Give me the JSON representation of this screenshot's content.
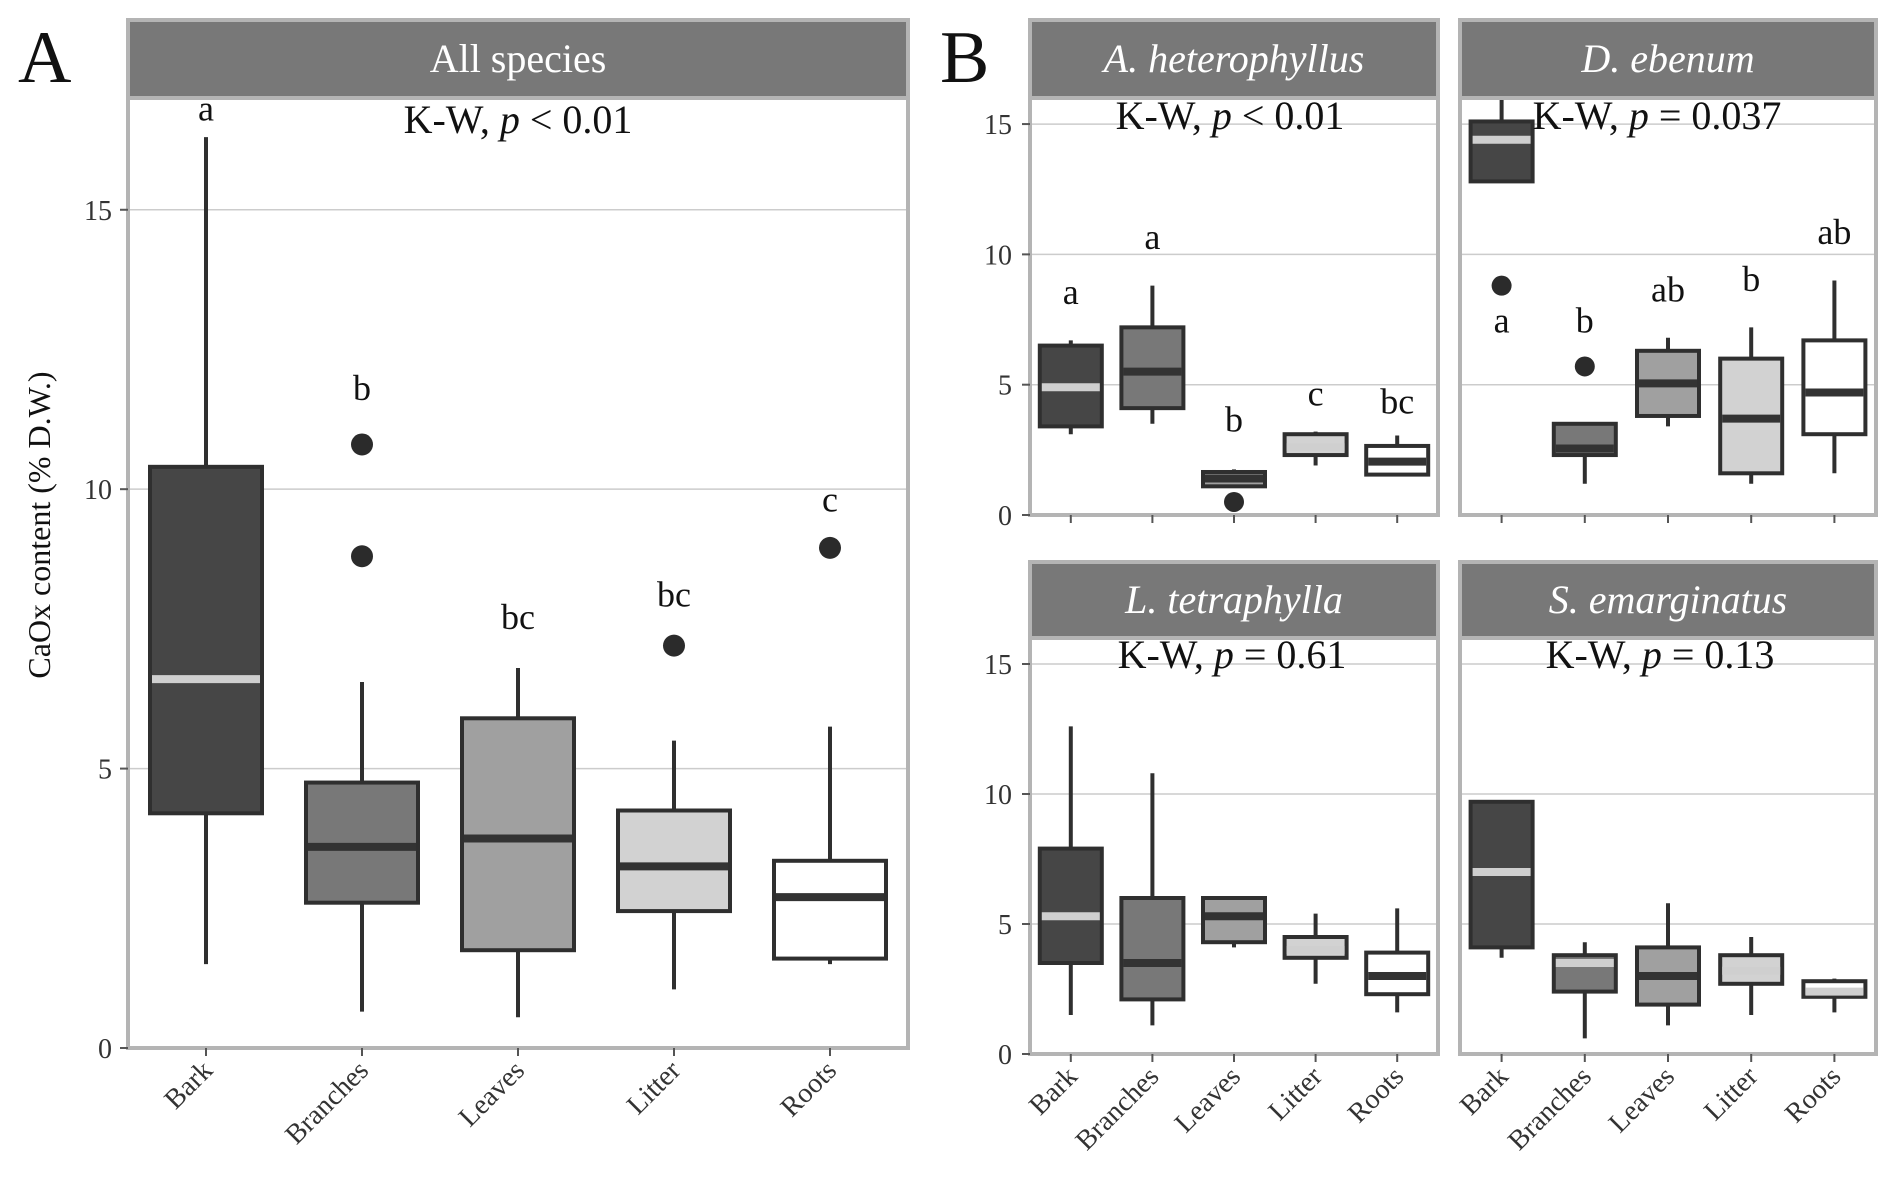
{
  "figure": {
    "y_axis_label": "CaOx content (% D.W.)",
    "panel_letters": [
      "A",
      "B"
    ],
    "colors": {
      "Bark": "#464646",
      "Branches": "#787878",
      "Leaves": "#a0a0a0",
      "Litter": "#d2d2d2",
      "Roots": "#ffffff",
      "strip": "#787878",
      "frame": "#b4b4b4",
      "outline": "#2f2f2f",
      "grid": "#cccccc"
    }
  },
  "chart_data": [
    {
      "type": "box",
      "panel_label": "A",
      "title": "All species",
      "test_prefix": "K-W, ",
      "test_p": "p",
      "test_value": " < 0.01",
      "xlabel": "",
      "ylabel": "CaOx content (% D.W.)",
      "ylim": [
        0,
        17
      ],
      "yticks": [
        0,
        5,
        10,
        15
      ],
      "categories": [
        "Bark",
        "Branches",
        "Leaves",
        "Litter",
        "Roots"
      ],
      "boxes": [
        {
          "category": "Bark",
          "q1": 4.2,
          "median": 6.6,
          "q3": 10.4,
          "whisker_low": 1.5,
          "whisker_high": 16.3,
          "outliers": [],
          "letter": "a",
          "letter_y": 16.6,
          "median_color": "light"
        },
        {
          "category": "Branches",
          "q1": 2.6,
          "median": 3.6,
          "q3": 4.75,
          "whisker_low": 0.65,
          "whisker_high": 6.55,
          "outliers": [
            10.8,
            8.8
          ],
          "letter": "b",
          "letter_y": 11.6,
          "median_color": "dark"
        },
        {
          "category": "Leaves",
          "q1": 1.75,
          "median": 3.75,
          "q3": 5.9,
          "whisker_low": 0.55,
          "whisker_high": 6.8,
          "outliers": [],
          "letter": "bc",
          "letter_y": 7.5,
          "median_color": "dark"
        },
        {
          "category": "Litter",
          "q1": 2.45,
          "median": 3.25,
          "q3": 4.25,
          "whisker_low": 1.05,
          "whisker_high": 5.5,
          "outliers": [
            7.2
          ],
          "letter": "bc",
          "letter_y": 7.9,
          "median_color": "dark"
        },
        {
          "category": "Roots",
          "q1": 1.6,
          "median": 2.7,
          "q3": 3.35,
          "whisker_low": 1.5,
          "whisker_high": 5.75,
          "outliers": [
            8.95
          ],
          "letter": "c",
          "letter_y": 9.6,
          "median_color": "dark"
        }
      ]
    },
    {
      "type": "box",
      "panel_label": "B",
      "title": "A. heterophyllus",
      "test_prefix": "K-W, ",
      "test_p": "p",
      "test_value": " < 0.01",
      "xlabel": "",
      "ylabel": "CaOx content (% D.W.)",
      "ylim": [
        0,
        16
      ],
      "yticks": [
        0,
        5,
        10,
        15
      ],
      "categories": [
        "Bark",
        "Branches",
        "Leaves",
        "Litter",
        "Roots"
      ],
      "boxes": [
        {
          "category": "Bark",
          "q1": 3.4,
          "median": 4.9,
          "q3": 6.5,
          "whisker_low": 3.1,
          "whisker_high": 6.7,
          "outliers": [],
          "letter": "a",
          "letter_y": 8.1,
          "median_color": "light"
        },
        {
          "category": "Branches",
          "q1": 4.1,
          "median": 5.5,
          "q3": 7.2,
          "whisker_low": 3.5,
          "whisker_high": 8.8,
          "outliers": [],
          "letter": "a",
          "letter_y": 10.2,
          "median_color": "dark"
        },
        {
          "category": "Leaves",
          "q1": 1.1,
          "median": 1.4,
          "q3": 1.65,
          "whisker_low": 1.1,
          "whisker_high": 1.75,
          "outliers": [
            0.5
          ],
          "letter": "b",
          "letter_y": 3.2,
          "median_color": "dark"
        },
        {
          "category": "Litter",
          "q1": 2.3,
          "median": 2.6,
          "q3": 3.1,
          "whisker_low": 1.9,
          "whisker_high": 3.2,
          "outliers": [],
          "letter": "c",
          "letter_y": 4.2,
          "median_color": "light"
        },
        {
          "category": "Roots",
          "q1": 1.55,
          "median": 2.05,
          "q3": 2.65,
          "whisker_low": 1.55,
          "whisker_high": 3.05,
          "outliers": [],
          "letter": "bc",
          "letter_y": 3.9,
          "median_color": "dark"
        }
      ]
    },
    {
      "type": "box",
      "panel_label": "",
      "title": "D. ebenum",
      "test_prefix": "K-W, ",
      "test_p": "p",
      "test_value": " = 0.037",
      "xlabel": "",
      "ylabel": "",
      "ylim": [
        0,
        16
      ],
      "yticks": [
        0,
        5,
        10,
        15
      ],
      "categories": [
        "Bark",
        "Branches",
        "Leaves",
        "Litter",
        "Roots"
      ],
      "boxes": [
        {
          "category": "Bark",
          "q1": 12.8,
          "median": 14.4,
          "q3": 15.1,
          "whisker_low": 12.8,
          "whisker_high": 16.5,
          "outliers": [
            8.8
          ],
          "letter": "a",
          "letter_y": 7.0,
          "median_color": "light"
        },
        {
          "category": "Branches",
          "q1": 2.3,
          "median": 2.55,
          "q3": 3.5,
          "whisker_low": 1.2,
          "whisker_high": 3.5,
          "outliers": [
            5.7
          ],
          "letter": "b",
          "letter_y": 7.0,
          "median_color": "dark"
        },
        {
          "category": "Leaves",
          "q1": 3.8,
          "median": 5.05,
          "q3": 6.3,
          "whisker_low": 3.4,
          "whisker_high": 6.8,
          "outliers": [],
          "letter": "ab",
          "letter_y": 8.2,
          "median_color": "dark"
        },
        {
          "category": "Litter",
          "q1": 1.6,
          "median": 3.7,
          "q3": 6.0,
          "whisker_low": 1.2,
          "whisker_high": 7.2,
          "outliers": [],
          "letter": "b",
          "letter_y": 8.6,
          "median_color": "dark"
        },
        {
          "category": "Roots",
          "q1": 3.1,
          "median": 4.7,
          "q3": 6.7,
          "whisker_low": 1.6,
          "whisker_high": 9.0,
          "outliers": [],
          "letter": "ab",
          "letter_y": 10.4,
          "median_color": "dark"
        }
      ]
    },
    {
      "type": "box",
      "panel_label": "",
      "title": "L. tetraphylla",
      "test_prefix": "K-W, ",
      "test_p": "p",
      "test_value": " = 0.61",
      "xlabel": "",
      "ylabel": "",
      "ylim": [
        0,
        16
      ],
      "yticks": [
        0,
        5,
        10,
        15
      ],
      "categories": [
        "Bark",
        "Branches",
        "Leaves",
        "Litter",
        "Roots"
      ],
      "boxes": [
        {
          "category": "Bark",
          "q1": 3.5,
          "median": 5.3,
          "q3": 7.9,
          "whisker_low": 1.5,
          "whisker_high": 12.6,
          "outliers": [],
          "letter": "",
          "letter_y": 0,
          "median_color": "light"
        },
        {
          "category": "Branches",
          "q1": 2.1,
          "median": 3.5,
          "q3": 6.0,
          "whisker_low": 1.1,
          "whisker_high": 10.8,
          "outliers": [],
          "letter": "",
          "letter_y": 0,
          "median_color": "dark"
        },
        {
          "category": "Leaves",
          "q1": 4.3,
          "median": 5.3,
          "q3": 6.0,
          "whisker_low": 4.1,
          "whisker_high": 6.0,
          "outliers": [],
          "letter": "",
          "letter_y": 0,
          "median_color": "dark"
        },
        {
          "category": "Litter",
          "q1": 3.7,
          "median": 4.0,
          "q3": 4.5,
          "whisker_low": 2.7,
          "whisker_high": 5.4,
          "outliers": [],
          "letter": "",
          "letter_y": 0,
          "median_color": "light"
        },
        {
          "category": "Roots",
          "q1": 2.3,
          "median": 3.0,
          "q3": 3.9,
          "whisker_low": 1.6,
          "whisker_high": 5.6,
          "outliers": [],
          "letter": "",
          "letter_y": 0,
          "median_color": "dark"
        }
      ]
    },
    {
      "type": "box",
      "panel_label": "",
      "title": "S. emarginatus",
      "test_prefix": "K-W, ",
      "test_p": "p",
      "test_value": " = 0.13",
      "xlabel": "",
      "ylabel": "",
      "ylim": [
        0,
        16
      ],
      "yticks": [
        0,
        5,
        10,
        15
      ],
      "categories": [
        "Bark",
        "Branches",
        "Leaves",
        "Litter",
        "Roots"
      ],
      "boxes": [
        {
          "category": "Bark",
          "q1": 4.1,
          "median": 7.0,
          "q3": 9.7,
          "whisker_low": 3.7,
          "whisker_high": 9.7,
          "outliers": [],
          "letter": "",
          "letter_y": 0,
          "median_color": "light"
        },
        {
          "category": "Branches",
          "q1": 2.4,
          "median": 3.5,
          "q3": 3.8,
          "whisker_low": 0.6,
          "whisker_high": 4.3,
          "outliers": [],
          "letter": "",
          "letter_y": 0,
          "median_color": "light"
        },
        {
          "category": "Leaves",
          "q1": 1.9,
          "median": 3.0,
          "q3": 4.1,
          "whisker_low": 1.1,
          "whisker_high": 5.8,
          "outliers": [],
          "letter": "",
          "letter_y": 0,
          "median_color": "dark"
        },
        {
          "category": "Litter",
          "q1": 2.7,
          "median": 3.2,
          "q3": 3.8,
          "whisker_low": 1.5,
          "whisker_high": 4.5,
          "outliers": [],
          "letter": "",
          "letter_y": 0,
          "median_color": "light"
        },
        {
          "category": "Roots",
          "q1": 2.2,
          "median": 2.4,
          "q3": 2.8,
          "whisker_low": 1.6,
          "whisker_high": 2.9,
          "outliers": [],
          "letter": "",
          "letter_y": 0,
          "median_color": "light"
        }
      ]
    }
  ]
}
